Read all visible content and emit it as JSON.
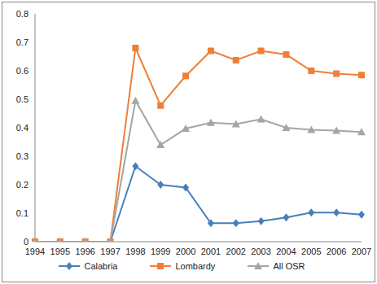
{
  "chart_data": {
    "type": "line",
    "categories": [
      "1994",
      "1995",
      "1996",
      "1997",
      "1998",
      "1999",
      "2000",
      "2001",
      "2002",
      "2003",
      "2004",
      "2005",
      "2006",
      "2007"
    ],
    "series": [
      {
        "name": "Calabria",
        "color": "#4a7ebb",
        "marker": "diamond",
        "values": [
          0,
          0,
          0,
          0,
          0.265,
          0.2,
          0.19,
          0.065,
          0.065,
          0.072,
          0.085,
          0.102,
          0.102,
          0.095
        ]
      },
      {
        "name": "Lombardy",
        "color": "#f07f36",
        "marker": "square",
        "values": [
          0,
          0,
          0,
          0,
          0.68,
          0.478,
          0.582,
          0.67,
          0.637,
          0.67,
          0.657,
          0.6,
          0.59,
          0.585
        ]
      },
      {
        "name": "All OSR",
        "color": "#a5a5a5",
        "marker": "triangle",
        "values": [
          0,
          0,
          0,
          0,
          0.495,
          0.34,
          0.397,
          0.418,
          0.413,
          0.43,
          0.4,
          0.393,
          0.39,
          0.385
        ]
      }
    ],
    "ylim": [
      0,
      0.8
    ],
    "yticks": [
      0,
      0.1,
      0.2,
      0.3,
      0.4,
      0.5,
      0.6,
      0.7,
      0.8
    ],
    "grid": false,
    "legend": "bottom"
  }
}
